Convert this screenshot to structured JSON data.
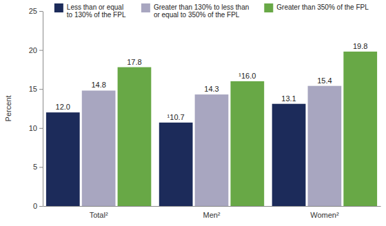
{
  "chart_data": {
    "type": "bar",
    "y_label": "Percent",
    "categories": [
      "Total²",
      "Men²",
      "Women²"
    ],
    "series": [
      {
        "name": "Less than or equal to 130% of the FPL",
        "color": "#1c2b5a",
        "values": [
          12.0,
          10.7,
          13.1
        ],
        "value_labels": [
          "12.0",
          "¹10.7",
          "13.1"
        ]
      },
      {
        "name": "Greater than 130% to less than or equal to 350% of the FPL",
        "color": "#a8a6c0",
        "values": [
          14.8,
          14.3,
          15.4
        ],
        "value_labels": [
          "14.8",
          "14.3",
          "15.4"
        ]
      },
      {
        "name": "Greater than 350% of the FPL",
        "color": "#68a846",
        "values": [
          17.8,
          16.0,
          19.8
        ],
        "value_labels": [
          "17.8",
          "¹16.0",
          "19.8"
        ]
      }
    ],
    "ylim": [
      0,
      25
    ],
    "yticks": [
      0,
      5,
      10,
      15,
      20,
      25
    ],
    "grid": false,
    "legend": "top",
    "data_labels": true
  }
}
